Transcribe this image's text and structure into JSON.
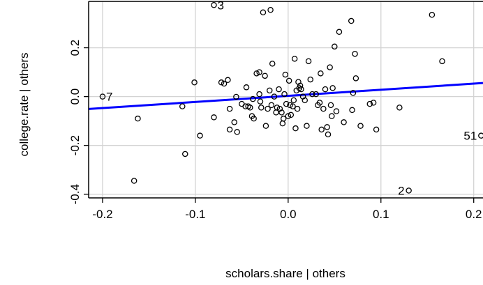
{
  "chart_data": {
    "type": "scatter",
    "title": "",
    "xlabel": "scholars.share | others",
    "ylabel": "college.rate | others",
    "xlim": [
      -0.215,
      0.21
    ],
    "ylim": [
      -0.415,
      0.39
    ],
    "x_ticks": [
      -0.2,
      -0.1,
      0.0,
      0.1,
      0.2
    ],
    "x_tick_labels": [
      "-0.2",
      "-0.1",
      "0.0",
      "0.1",
      "0.2"
    ],
    "y_ticks": [
      -0.4,
      -0.2,
      0.0,
      0.2
    ],
    "y_tick_labels": [
      "-0.4",
      "-0.2",
      "0.0",
      "0.2"
    ],
    "grid": true,
    "fit_line": {
      "color": "#0000ff",
      "slope": 0.25,
      "intercept": 0.003
    },
    "labeled_points": [
      {
        "label": "3",
        "x": -0.08,
        "y": 0.375
      },
      {
        "label": "7",
        "x": -0.2,
        "y": 0.0
      },
      {
        "label": "2",
        "x": 0.13,
        "y": -0.385
      },
      {
        "label": "51",
        "x": 0.208,
        "y": -0.16
      }
    ],
    "points": [
      {
        "x": -0.166,
        "y": -0.345
      },
      {
        "x": -0.162,
        "y": -0.09
      },
      {
        "x": -0.114,
        "y": -0.04
      },
      {
        "x": -0.111,
        "y": -0.235
      },
      {
        "x": -0.101,
        "y": 0.058
      },
      {
        "x": -0.095,
        "y": -0.16
      },
      {
        "x": -0.08,
        "y": -0.085
      },
      {
        "x": -0.072,
        "y": 0.058
      },
      {
        "x": -0.069,
        "y": 0.053
      },
      {
        "x": -0.065,
        "y": 0.068
      },
      {
        "x": -0.063,
        "y": -0.05
      },
      {
        "x": -0.063,
        "y": -0.135
      },
      {
        "x": -0.058,
        "y": -0.105
      },
      {
        "x": -0.056,
        "y": -0.001
      },
      {
        "x": -0.055,
        "y": -0.145
      },
      {
        "x": -0.05,
        "y": -0.03
      },
      {
        "x": -0.046,
        "y": -0.04
      },
      {
        "x": -0.045,
        "y": 0.038
      },
      {
        "x": -0.043,
        "y": -0.04
      },
      {
        "x": -0.041,
        "y": -0.045
      },
      {
        "x": -0.039,
        "y": -0.08
      },
      {
        "x": -0.038,
        "y": -0.01
      },
      {
        "x": -0.037,
        "y": -0.09
      },
      {
        "x": -0.034,
        "y": 0.095
      },
      {
        "x": -0.031,
        "y": 0.1
      },
      {
        "x": -0.031,
        "y": 0.01
      },
      {
        "x": -0.03,
        "y": -0.02
      },
      {
        "x": -0.029,
        "y": -0.045
      },
      {
        "x": -0.027,
        "y": 0.345
      },
      {
        "x": -0.025,
        "y": 0.085
      },
      {
        "x": -0.024,
        "y": -0.12
      },
      {
        "x": -0.022,
        "y": -0.05
      },
      {
        "x": -0.02,
        "y": 0.025
      },
      {
        "x": -0.019,
        "y": 0.355
      },
      {
        "x": -0.018,
        "y": -0.035
      },
      {
        "x": -0.017,
        "y": 0.135
      },
      {
        "x": -0.015,
        "y": 0.0
      },
      {
        "x": -0.013,
        "y": -0.065
      },
      {
        "x": -0.012,
        "y": -0.045
      },
      {
        "x": -0.01,
        "y": 0.03
      },
      {
        "x": -0.009,
        "y": -0.05
      },
      {
        "x": -0.007,
        "y": -0.065
      },
      {
        "x": -0.006,
        "y": -0.11
      },
      {
        "x": -0.005,
        "y": -0.09
      },
      {
        "x": -0.004,
        "y": 0.01
      },
      {
        "x": -0.003,
        "y": 0.09
      },
      {
        "x": -0.002,
        "y": -0.03
      },
      {
        "x": 0.0,
        "y": -0.08
      },
      {
        "x": 0.001,
        "y": 0.065
      },
      {
        "x": 0.002,
        "y": -0.035
      },
      {
        "x": 0.003,
        "y": -0.075
      },
      {
        "x": 0.005,
        "y": -0.04
      },
      {
        "x": 0.006,
        "y": -0.015
      },
      {
        "x": 0.007,
        "y": 0.155
      },
      {
        "x": 0.008,
        "y": -0.13
      },
      {
        "x": 0.009,
        "y": 0.025
      },
      {
        "x": 0.01,
        "y": -0.05
      },
      {
        "x": 0.011,
        "y": 0.06
      },
      {
        "x": 0.012,
        "y": 0.035
      },
      {
        "x": 0.013,
        "y": 0.045
      },
      {
        "x": 0.014,
        "y": 0.03
      },
      {
        "x": 0.016,
        "y": 0.0
      },
      {
        "x": 0.018,
        "y": -0.015
      },
      {
        "x": 0.02,
        "y": -0.12
      },
      {
        "x": 0.022,
        "y": 0.145
      },
      {
        "x": 0.024,
        "y": 0.07
      },
      {
        "x": 0.026,
        "y": 0.01
      },
      {
        "x": 0.03,
        "y": 0.01
      },
      {
        "x": 0.032,
        "y": -0.035
      },
      {
        "x": 0.034,
        "y": -0.025
      },
      {
        "x": 0.035,
        "y": 0.095
      },
      {
        "x": 0.036,
        "y": -0.135
      },
      {
        "x": 0.038,
        "y": -0.05
      },
      {
        "x": 0.04,
        "y": 0.03
      },
      {
        "x": 0.042,
        "y": -0.125
      },
      {
        "x": 0.043,
        "y": -0.155
      },
      {
        "x": 0.045,
        "y": 0.12
      },
      {
        "x": 0.046,
        "y": -0.035
      },
      {
        "x": 0.047,
        "y": -0.08
      },
      {
        "x": 0.048,
        "y": 0.035
      },
      {
        "x": 0.05,
        "y": 0.205
      },
      {
        "x": 0.052,
        "y": -0.06
      },
      {
        "x": 0.055,
        "y": 0.265
      },
      {
        "x": 0.06,
        "y": -0.105
      },
      {
        "x": 0.068,
        "y": 0.31
      },
      {
        "x": 0.069,
        "y": -0.055
      },
      {
        "x": 0.07,
        "y": 0.015
      },
      {
        "x": 0.072,
        "y": 0.175
      },
      {
        "x": 0.073,
        "y": 0.075
      },
      {
        "x": 0.078,
        "y": -0.12
      },
      {
        "x": 0.088,
        "y": -0.03
      },
      {
        "x": 0.092,
        "y": -0.025
      },
      {
        "x": 0.095,
        "y": -0.135
      },
      {
        "x": 0.12,
        "y": -0.045
      },
      {
        "x": 0.155,
        "y": 0.335
      },
      {
        "x": 0.166,
        "y": 0.145
      }
    ]
  }
}
